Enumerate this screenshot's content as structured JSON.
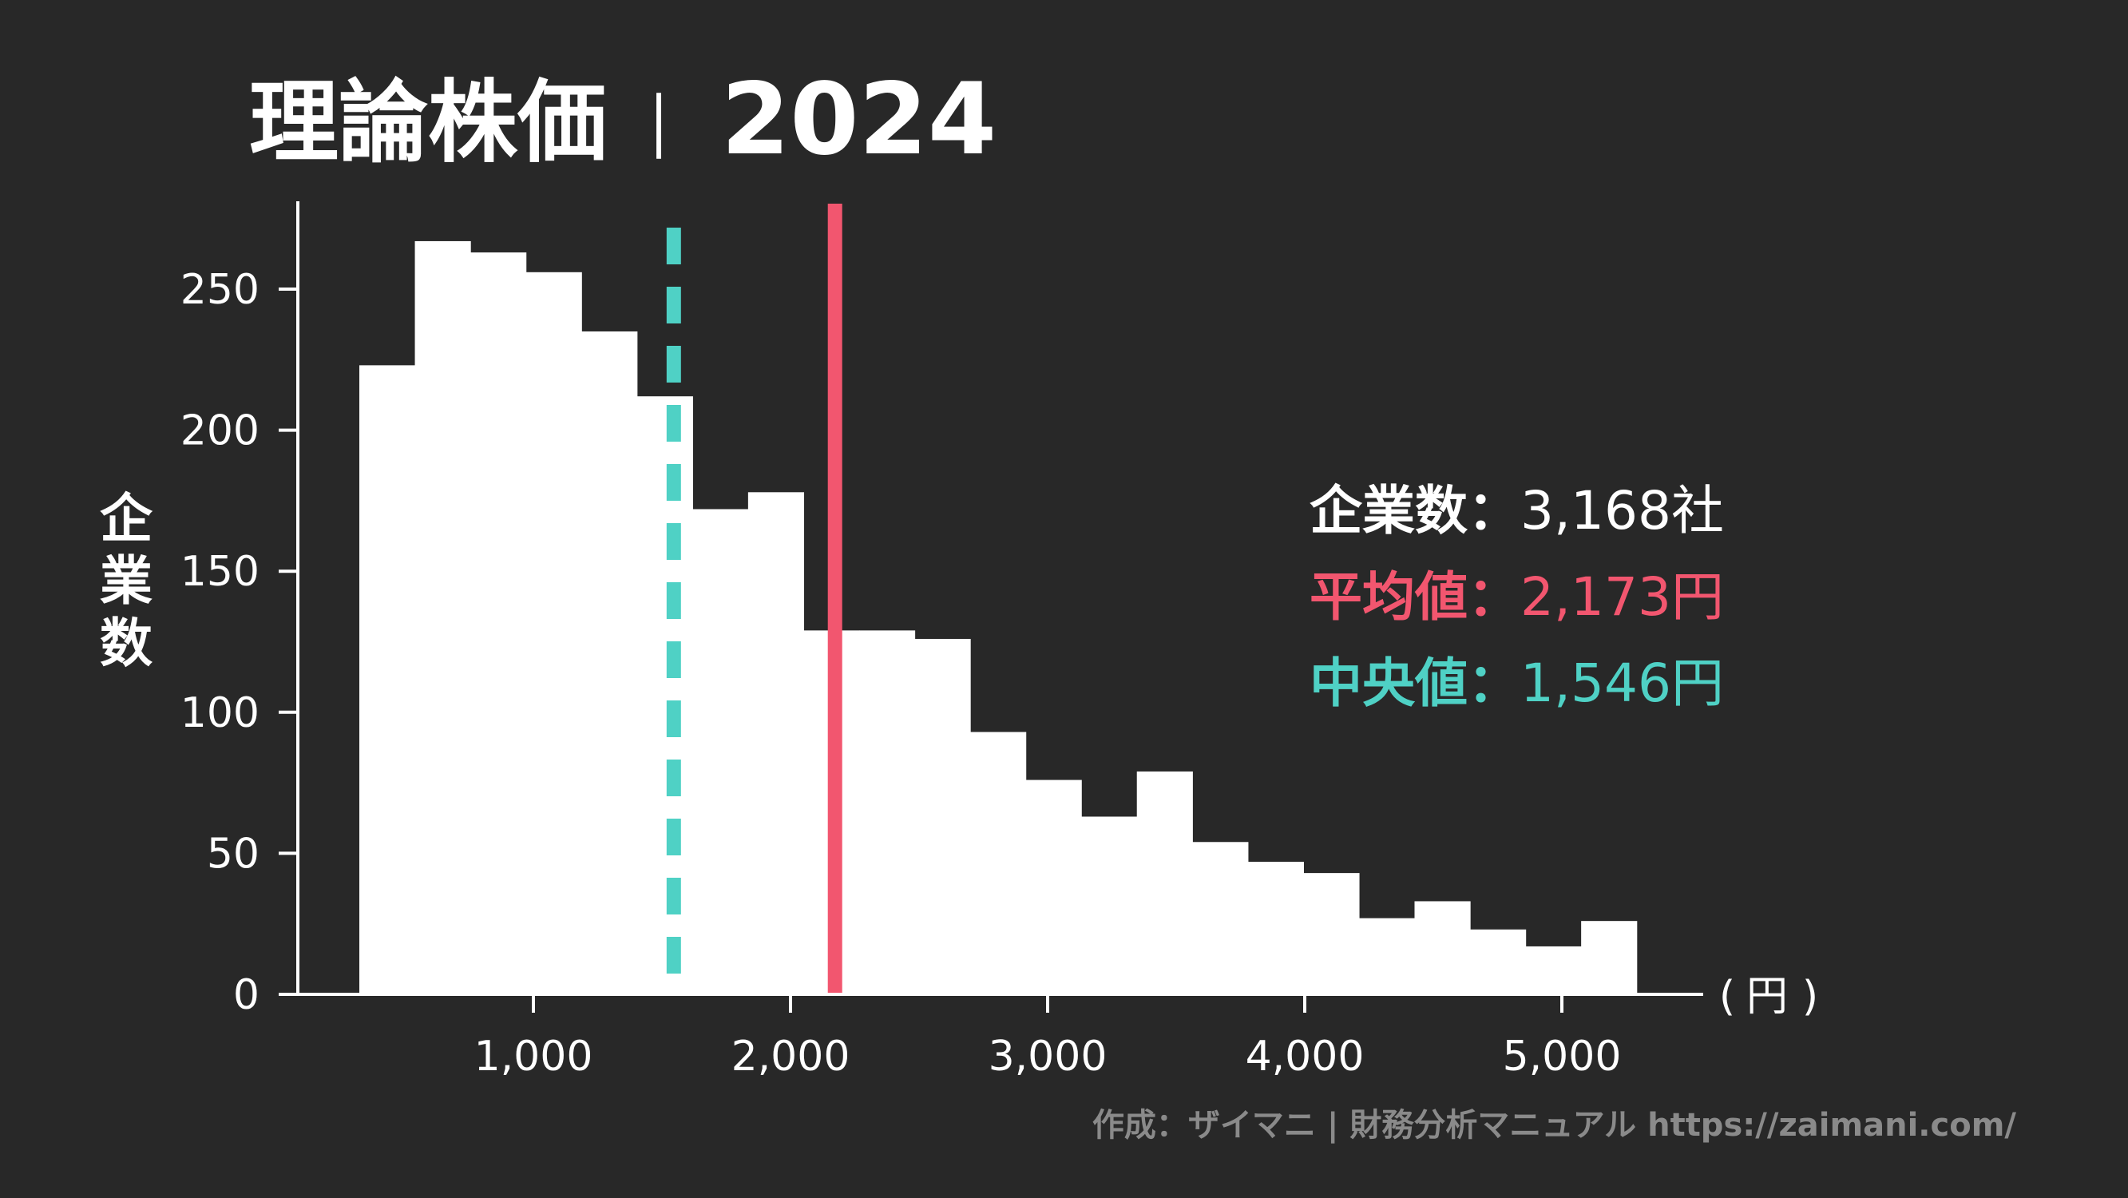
{
  "chart_data": {
    "type": "bar",
    "title": "理論株価",
    "title_separator": "｜",
    "title_year": "2024",
    "ylabel": "企業数",
    "xlabel": "（円）",
    "xlabel_parts": [
      "(",
      "円",
      ")"
    ],
    "xlim": [
      0,
      5600
    ],
    "ylim": [
      0,
      280
    ],
    "bin_width": 216,
    "bins": [
      {
        "start": 323,
        "value": 223
      },
      {
        "start": 539,
        "value": 267
      },
      {
        "start": 755,
        "value": 263
      },
      {
        "start": 971,
        "value": 256
      },
      {
        "start": 1187,
        "value": 235
      },
      {
        "start": 1403,
        "value": 212
      },
      {
        "start": 1619,
        "value": 172
      },
      {
        "start": 1835,
        "value": 178
      },
      {
        "start": 2051,
        "value": 129
      },
      {
        "start": 2267,
        "value": 129
      },
      {
        "start": 2483,
        "value": 126
      },
      {
        "start": 2699,
        "value": 93
      },
      {
        "start": 2915,
        "value": 76
      },
      {
        "start": 3131,
        "value": 63
      },
      {
        "start": 3347,
        "value": 79
      },
      {
        "start": 3563,
        "value": 54
      },
      {
        "start": 3779,
        "value": 47
      },
      {
        "start": 3995,
        "value": 43
      },
      {
        "start": 4211,
        "value": 27
      },
      {
        "start": 4427,
        "value": 33
      },
      {
        "start": 4643,
        "value": 23
      },
      {
        "start": 4859,
        "value": 17
      },
      {
        "start": 5075,
        "value": 26
      }
    ],
    "xticks": [
      {
        "value": 1000,
        "label": "1,000"
      },
      {
        "value": 2000,
        "label": "2,000"
      },
      {
        "value": 3000,
        "label": "3,000"
      },
      {
        "value": 4000,
        "label": "4,000"
      },
      {
        "value": 5000,
        "label": "5,000"
      }
    ],
    "yticks": [
      {
        "value": 0,
        "label": "0"
      },
      {
        "value": 50,
        "label": "50"
      },
      {
        "value": 100,
        "label": "100"
      },
      {
        "value": 150,
        "label": "150"
      },
      {
        "value": 200,
        "label": "200"
      },
      {
        "value": 250,
        "label": "250"
      }
    ],
    "mean": {
      "value": 2173,
      "color": "#f2566f",
      "style": "solid"
    },
    "median": {
      "value": 1546,
      "color": "#4fd1c5",
      "style": "dashed"
    },
    "bar_color": "#ffffff",
    "background": "#282828",
    "grid": false,
    "legend": "none"
  },
  "stats": [
    {
      "label": "企業数",
      "sep": "：",
      "value": "3,168社",
      "color": "#ffffff"
    },
    {
      "label": "平均値",
      "sep": "：",
      "value": "2,173円",
      "color": "#f2566f"
    },
    {
      "label": "中央値",
      "sep": "：",
      "value": "1,546円",
      "color": "#4fd1c5"
    }
  ],
  "credit": "作成：ザイマニ | 財務分析マニュアル https://zaimani.com/"
}
